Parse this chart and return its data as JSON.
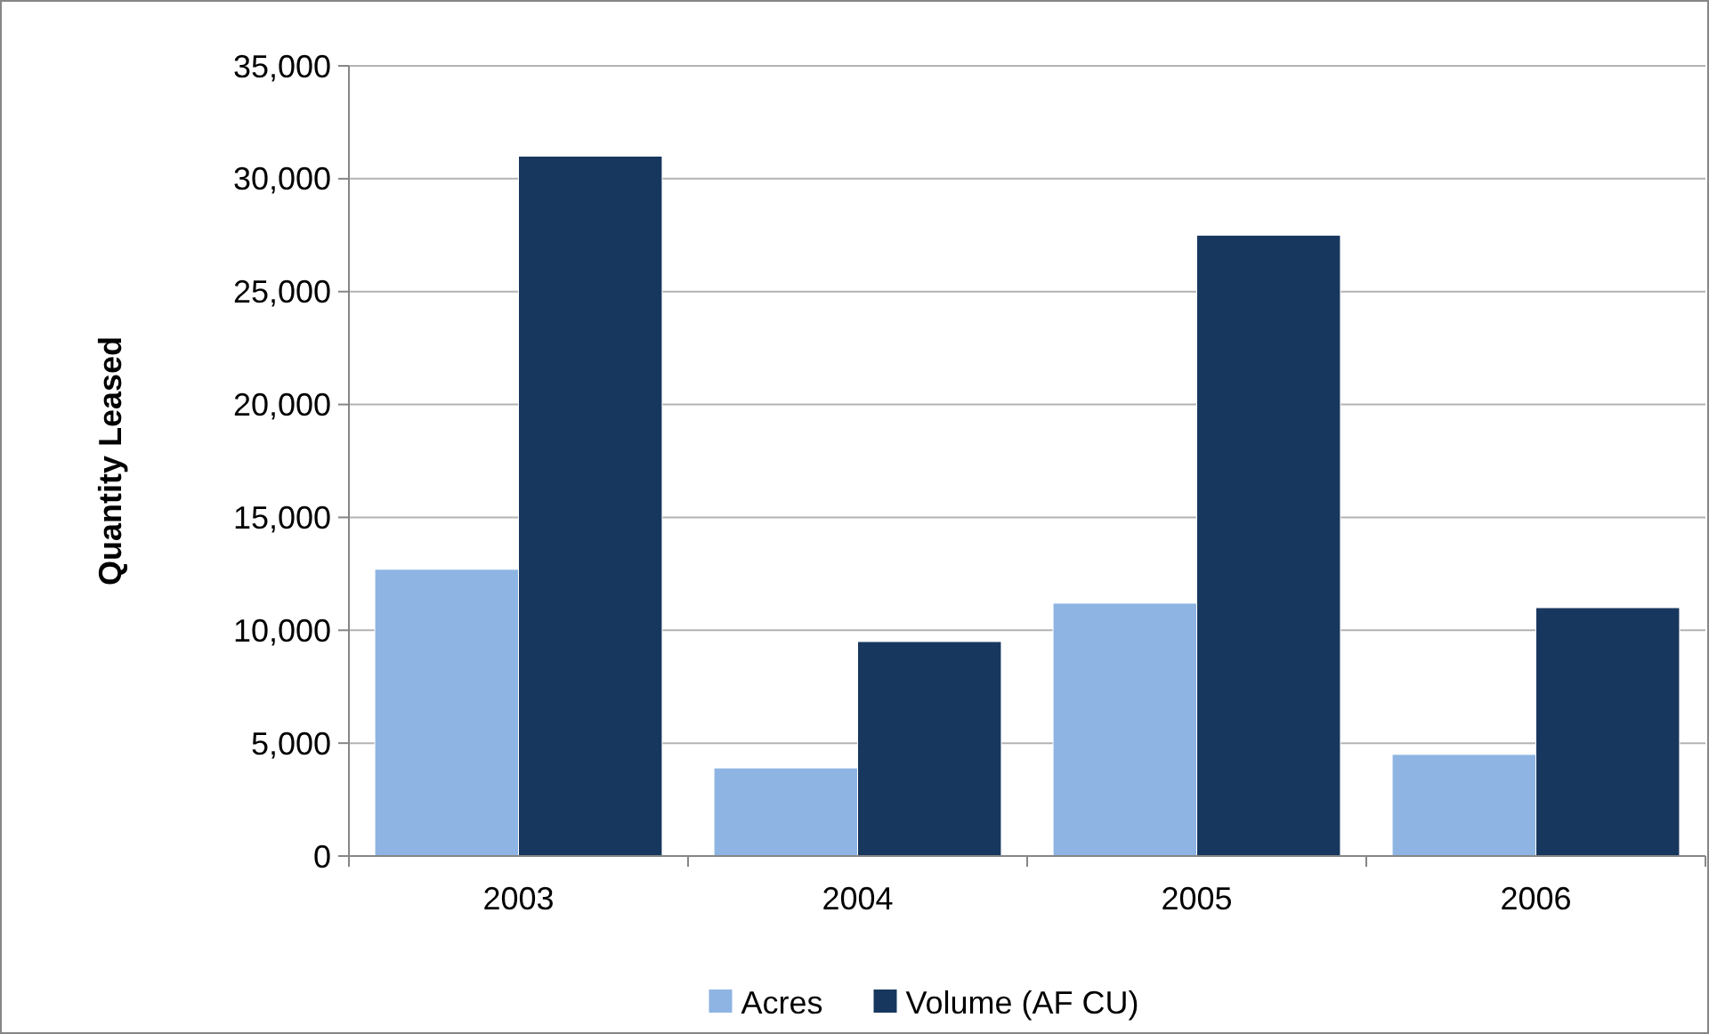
{
  "chart_data": {
    "type": "bar",
    "ylabel": "Quantity Leased",
    "categories": [
      "2003",
      "2004",
      "2005",
      "2006"
    ],
    "series": [
      {
        "name": "Acres",
        "color": "#8eb4e3",
        "values": [
          12700,
          3900,
          11200,
          4500
        ]
      },
      {
        "name": "Volume (AF CU)",
        "color": "#17375e",
        "values": [
          31000,
          9500,
          27500,
          11000
        ]
      }
    ],
    "ylim": [
      0,
      35000
    ],
    "yticks": [
      {
        "value": 0,
        "label": "0"
      },
      {
        "value": 5000,
        "label": "5,000"
      },
      {
        "value": 10000,
        "label": "10,000"
      },
      {
        "value": 15000,
        "label": "15,000"
      },
      {
        "value": 20000,
        "label": "20,000"
      },
      {
        "value": 25000,
        "label": "25,000"
      },
      {
        "value": 30000,
        "label": "30,000"
      },
      {
        "value": 35000,
        "label": "35,000"
      }
    ],
    "grid": "y",
    "legend": "bottom"
  }
}
